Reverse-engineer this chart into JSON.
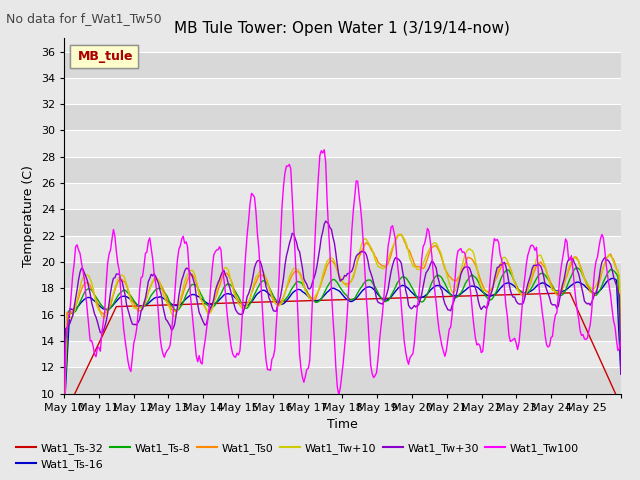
{
  "title": "MB Tule Tower: Open Water 1 (3/19/14-now)",
  "subtitle": "No data for f_Wat1_Tw50",
  "xlabel": "Time",
  "ylabel": "Temperature (C)",
  "ylim": [
    10,
    37
  ],
  "yticks": [
    10,
    12,
    14,
    16,
    18,
    20,
    22,
    24,
    26,
    28,
    30,
    32,
    34,
    36
  ],
  "xtick_labels": [
    "May 10",
    "May 11",
    "May 12",
    "May 13",
    "May 14",
    "May 15",
    "May 16",
    "May 17",
    "May 18",
    "May 19",
    "May 20",
    "May 21",
    "May 22",
    "May 23",
    "May 24",
    "May 25"
  ],
  "legend_box_label": "MB_tule",
  "series_colors": {
    "Wat1_Ts-32": "#cc0000",
    "Wat1_Ts-16": "#0000cc",
    "Wat1_Ts-8": "#00aa00",
    "Wat1_Ts0": "#ff8800",
    "Wat1_Tw+10": "#cccc00",
    "Wat1_Tw+30": "#8800cc",
    "Wat1_Tw100": "#ff00ff"
  },
  "background_color": "#e8e8e8",
  "grid_color": "#ffffff",
  "title_fontsize": 11,
  "subtitle_fontsize": 9,
  "axis_fontsize": 9,
  "tick_fontsize": 8
}
